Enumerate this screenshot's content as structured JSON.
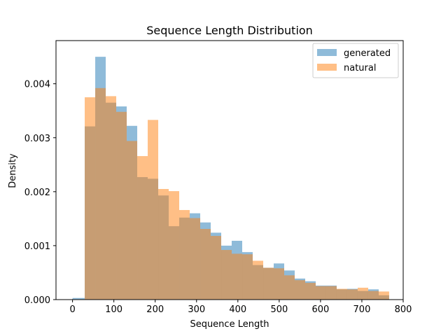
{
  "chart_data": {
    "type": "bar",
    "title": "Sequence Length Distribution",
    "xlabel": "Sequence Length",
    "ylabel": "Density",
    "xlim": [
      -40,
      800
    ],
    "ylim": [
      0,
      0.0048
    ],
    "x_ticks": [
      0,
      100,
      200,
      300,
      400,
      500,
      600,
      700,
      800
    ],
    "x_tick_labels": [
      "0",
      "100",
      "200",
      "300",
      "400",
      "500",
      "600",
      "700",
      "800"
    ],
    "y_ticks": [
      0,
      0.001,
      0.002,
      0.003,
      0.004
    ],
    "y_tick_labels": [
      "0.000",
      "0.001",
      "0.002",
      "0.003",
      "0.004"
    ],
    "bin_edges": [
      0,
      29.5,
      54.9,
      80.3,
      105.7,
      131.1,
      156.5,
      181.9,
      207.3,
      232.7,
      258.1,
      283.5,
      308.9,
      334.3,
      359.7,
      385.1,
      410.5,
      435.9,
      461.3,
      486.7,
      512.1,
      537.5,
      562.9,
      588.3,
      613.7,
      639.1,
      664.5,
      689.9,
      715.3,
      740.7,
      766
    ],
    "legend_position": "top-right",
    "grid": false,
    "series": [
      {
        "name": "generated",
        "color": "#1f77b4",
        "opacity": 0.5,
        "values": [
          3e-05,
          0.00321,
          0.0045,
          0.00365,
          0.00358,
          0.00322,
          0.00227,
          0.00224,
          0.00193,
          0.00136,
          0.00152,
          0.0016,
          0.00143,
          0.00124,
          0.001,
          0.00109,
          0.00088,
          0.00064,
          0.00059,
          0.00067,
          0.00054,
          0.00039,
          0.00034,
          0.00026,
          0.00026,
          0.00019,
          0.0002,
          0.00016,
          0.00019,
          8e-05
        ]
      },
      {
        "name": "natural",
        "color": "#ff7f0e",
        "opacity": 0.5,
        "values": [
          0,
          0.00375,
          0.00392,
          0.00377,
          0.00348,
          0.00294,
          0.00266,
          0.00333,
          0.00205,
          0.00201,
          0.00166,
          0.00151,
          0.00131,
          0.00118,
          0.00092,
          0.00085,
          0.00084,
          0.00072,
          0.00059,
          0.00058,
          0.00045,
          0.00036,
          0.00031,
          0.00025,
          0.00025,
          0.0002,
          0.00019,
          0.00022,
          0.00016,
          0.00015
        ]
      }
    ]
  }
}
